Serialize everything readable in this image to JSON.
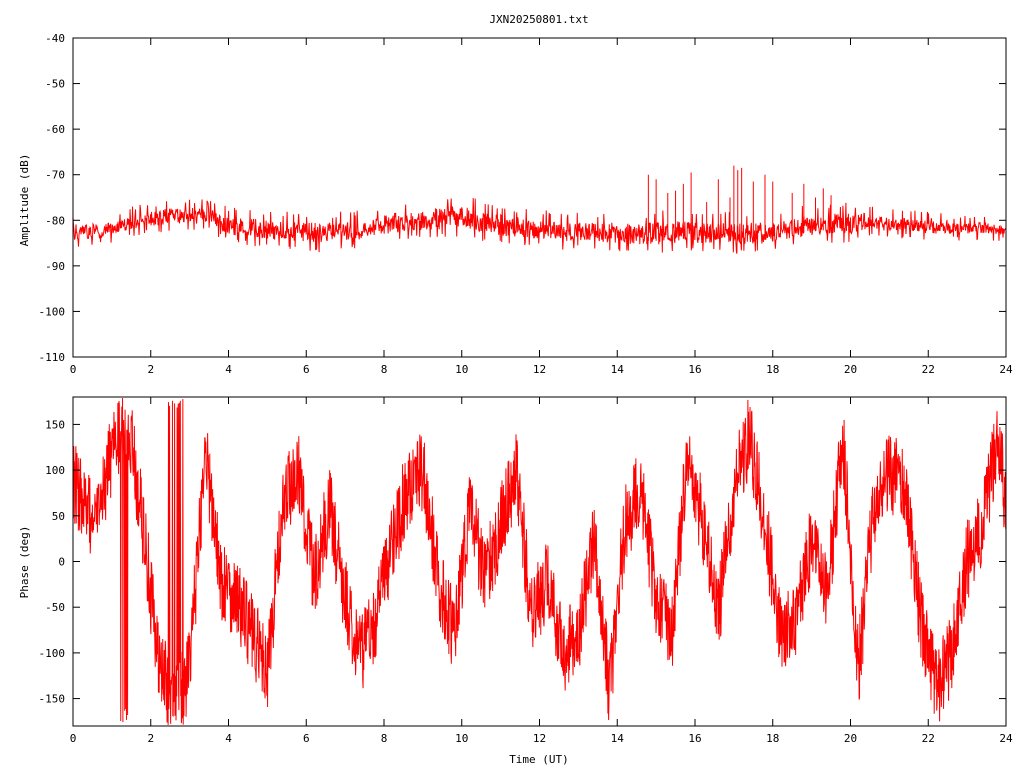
{
  "figure": {
    "title": "JXN20250801.txt",
    "xlabel": "Time (UT)"
  },
  "chart_data": [
    {
      "type": "line",
      "ylabel": "Amplitude (dB)",
      "xlim": [
        0,
        24
      ],
      "ylim": [
        -110,
        -40
      ],
      "xticks": [
        "0",
        "2",
        "4",
        "6",
        "8",
        "10",
        "12",
        "14",
        "16",
        "18",
        "20",
        "22",
        "24"
      ],
      "yticks": [
        "-40",
        "-50",
        "-60",
        "-70",
        "-80",
        "-90",
        "-100",
        "-110"
      ],
      "grid": false,
      "legend": "none",
      "color": "#ff0000",
      "series": [
        {
          "band": "envelope",
          "x": [
            0,
            0.5,
            1,
            1.5,
            2,
            2.5,
            3,
            3.5,
            4,
            4.5,
            5,
            5.5,
            6,
            6.5,
            7,
            7.5,
            8,
            8.5,
            9,
            9.5,
            10,
            10.5,
            11,
            11.5,
            12,
            12.5,
            13,
            13.5,
            14,
            14.5,
            15,
            15.5,
            16,
            16.5,
            17,
            17.5,
            18,
            18.5,
            19,
            19.5,
            20,
            20.5,
            21,
            21.5,
            22,
            22.5,
            23,
            23.5,
            24
          ],
          "upper": [
            -80,
            -80,
            -80,
            -78.5,
            -77.5,
            -76.5,
            -76.5,
            -76.5,
            -78.5,
            -78.5,
            -79,
            -79.5,
            -79.5,
            -79.5,
            -79.5,
            -79,
            -78,
            -77,
            -77,
            -76,
            -75.5,
            -77,
            -77.5,
            -78.5,
            -79,
            -79.5,
            -79.5,
            -79.5,
            -79.5,
            -80,
            -79,
            -79,
            -79.5,
            -79.5,
            -79.5,
            -79.5,
            -79.5,
            -79,
            -77.5,
            -77.5,
            -77.5,
            -77.5,
            -79,
            -79,
            -79.5,
            -80,
            -80,
            -80,
            -81
          ],
          "lower": [
            -85,
            -85,
            -84,
            -82.5,
            -82,
            -81.5,
            -81.5,
            -81.5,
            -84,
            -84.5,
            -85,
            -85.5,
            -86,
            -86,
            -85.5,
            -85,
            -84,
            -83.5,
            -83,
            -83,
            -82.5,
            -83.5,
            -84.5,
            -84.5,
            -85,
            -85.5,
            -85.5,
            -85.5,
            -86,
            -86.5,
            -86.5,
            -86,
            -86,
            -86,
            -86.5,
            -86.5,
            -86,
            -85,
            -84.5,
            -84,
            -84,
            -83,
            -83,
            -83,
            -83.5,
            -83.5,
            -83.5,
            -83.5,
            -83.5
          ]
        },
        {
          "band": "spikes",
          "x": [
            14.8,
            15.0,
            15.3,
            15.5,
            15.7,
            15.9,
            16.3,
            16.6,
            16.9,
            17.0,
            17.1,
            17.2,
            17.5,
            17.8,
            18.0,
            18.5,
            18.8,
            19.1,
            19.3,
            19.5
          ],
          "y": [
            -70,
            -71,
            -74,
            -73.5,
            -72,
            -69.5,
            -76,
            -71,
            -75,
            -68,
            -69,
            -68.5,
            -71.5,
            -70,
            -71.5,
            -74,
            -72,
            -75,
            -73,
            -74.5
          ]
        }
      ]
    },
    {
      "type": "line",
      "ylabel": "Phase (deg)",
      "xlim": [
        0,
        24
      ],
      "ylim": [
        -180,
        180
      ],
      "xticks": [
        "0",
        "2",
        "4",
        "6",
        "8",
        "10",
        "12",
        "14",
        "16",
        "18",
        "20",
        "22",
        "24"
      ],
      "yticks": [
        "150",
        "100",
        "50",
        "0",
        "-50",
        "-100",
        "-150"
      ],
      "grid": false,
      "legend": "none",
      "color": "#ff0000",
      "series": [
        {
          "band": "trend",
          "x": [
            0,
            0.3,
            0.6,
            1.0,
            1.4,
            1.8,
            2.2,
            2.6,
            3.0,
            3.4,
            3.8,
            4.2,
            4.6,
            5.0,
            5.4,
            5.8,
            6.2,
            6.6,
            7.0,
            7.4,
            7.8,
            8.2,
            8.6,
            9.0,
            9.4,
            9.8,
            10.2,
            10.6,
            11.0,
            11.4,
            11.8,
            12.2,
            12.6,
            13.0,
            13.4,
            13.8,
            14.2,
            14.6,
            15.0,
            15.4,
            15.8,
            16.2,
            16.6,
            17.0,
            17.4,
            17.8,
            18.2,
            18.6,
            19.0,
            19.4,
            19.8,
            20.2,
            20.6,
            21.0,
            21.4,
            21.8,
            22.2,
            22.6,
            23.0,
            23.4,
            23.8,
            24.0
          ],
          "y": [
            90,
            60,
            40,
            120,
            160,
            40,
            -110,
            -160,
            -120,
            120,
            -20,
            -40,
            -80,
            -120,
            60,
            100,
            -20,
            60,
            -40,
            -100,
            -60,
            20,
            80,
            100,
            -20,
            -80,
            60,
            -20,
            40,
            100,
            -60,
            -20,
            -100,
            -80,
            20,
            -140,
            40,
            80,
            -40,
            -80,
            120,
            40,
            -60,
            80,
            140,
            40,
            -80,
            -60,
            20,
            -40,
            140,
            -120,
            60,
            100,
            80,
            -60,
            -140,
            -100,
            0,
            40,
            140,
            60
          ]
        }
      ]
    }
  ]
}
